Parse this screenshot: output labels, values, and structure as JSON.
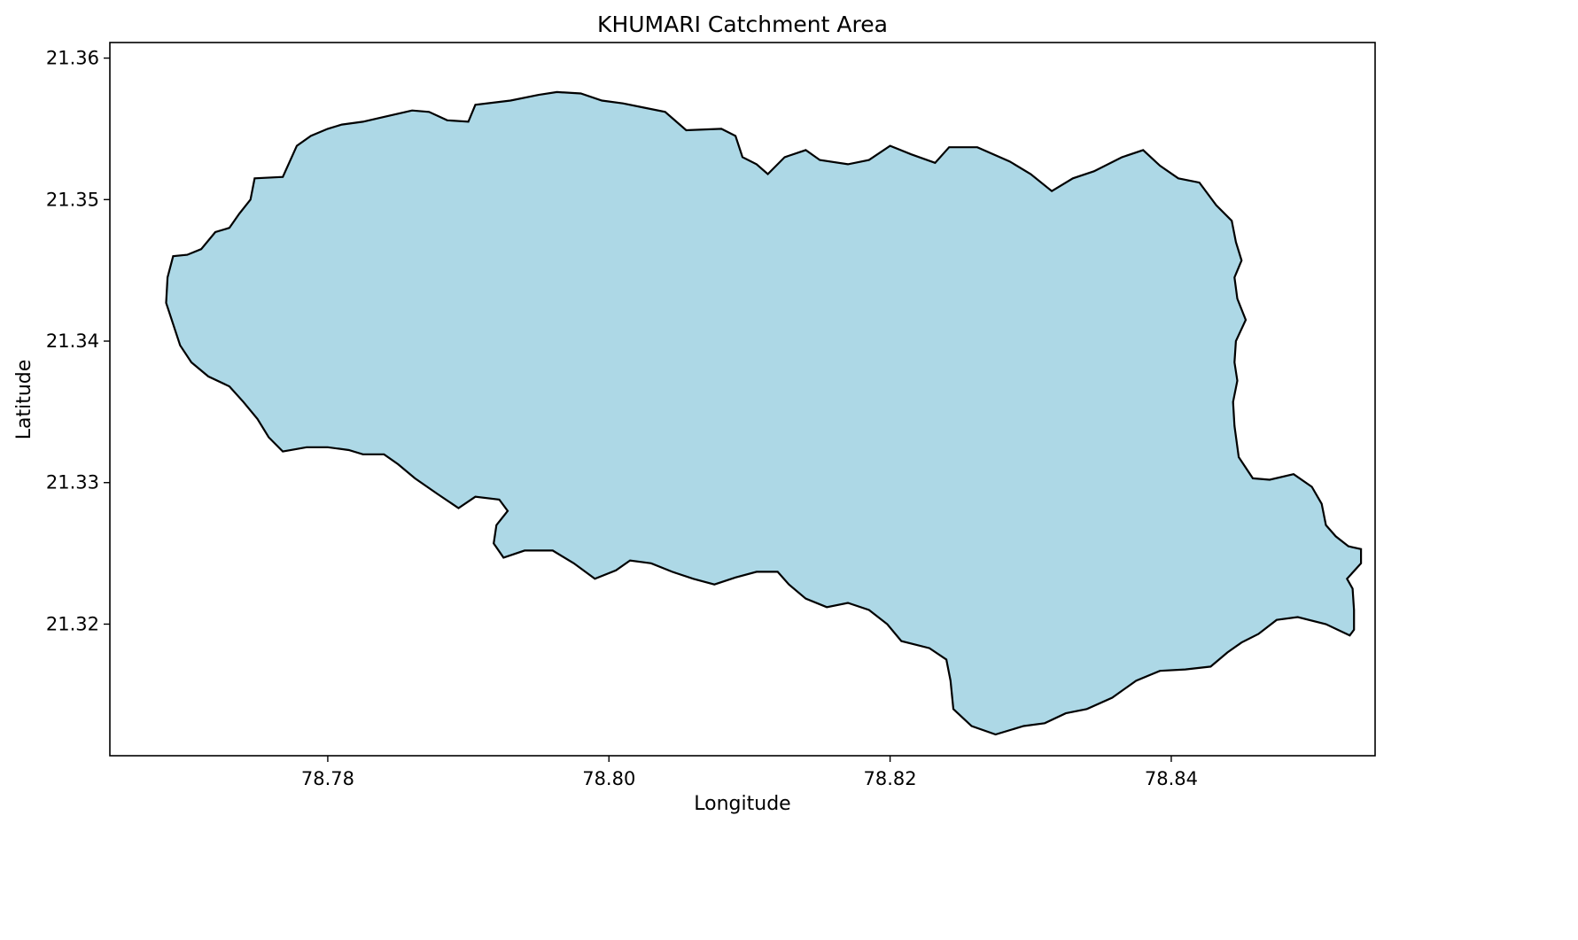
{
  "chart_data": {
    "type": "map",
    "title": "KHUMARI Catchment Area",
    "xlabel": "Longitude",
    "ylabel": "Latitude",
    "xlim": [
      78.7645,
      78.8545
    ],
    "ylim": [
      21.3107,
      21.3611
    ],
    "x_ticks": [
      {
        "value": 78.78,
        "label": "78.78"
      },
      {
        "value": 78.8,
        "label": "78.80"
      },
      {
        "value": 78.82,
        "label": "78.82"
      },
      {
        "value": 78.84,
        "label": "78.84"
      }
    ],
    "y_ticks": [
      {
        "value": 21.32,
        "label": "21.32"
      },
      {
        "value": 21.33,
        "label": "21.33"
      },
      {
        "value": 21.34,
        "label": "21.34"
      },
      {
        "value": 21.35,
        "label": "21.35"
      },
      {
        "value": 21.36,
        "label": "21.36"
      }
    ],
    "grid": false,
    "legend": false,
    "fill_color": "#add8e6",
    "edge_color": "#000000",
    "boundary_lonlat": [
      [
        78.7686,
        21.3445
      ],
      [
        78.769,
        21.346
      ],
      [
        78.77,
        21.3461
      ],
      [
        78.771,
        21.3465
      ],
      [
        78.772,
        21.3477
      ],
      [
        78.773,
        21.348
      ],
      [
        78.7737,
        21.349
      ],
      [
        78.7745,
        21.35
      ],
      [
        78.7748,
        21.3515
      ],
      [
        78.7768,
        21.3516
      ],
      [
        78.7778,
        21.3538
      ],
      [
        78.7788,
        21.3545
      ],
      [
        78.78,
        21.355
      ],
      [
        78.781,
        21.3553
      ],
      [
        78.7825,
        21.3555
      ],
      [
        78.7838,
        21.3558
      ],
      [
        78.786,
        21.3563
      ],
      [
        78.7872,
        21.3562
      ],
      [
        78.7885,
        21.3556
      ],
      [
        78.79,
        21.3555
      ],
      [
        78.7905,
        21.3567
      ],
      [
        78.793,
        21.357
      ],
      [
        78.795,
        21.3574
      ],
      [
        78.7963,
        21.3576
      ],
      [
        78.798,
        21.3575
      ],
      [
        78.7995,
        21.357
      ],
      [
        78.801,
        21.3568
      ],
      [
        78.8025,
        21.3565
      ],
      [
        78.804,
        21.3562
      ],
      [
        78.8055,
        21.3549
      ],
      [
        78.808,
        21.355
      ],
      [
        78.809,
        21.3545
      ],
      [
        78.8095,
        21.353
      ],
      [
        78.8105,
        21.3525
      ],
      [
        78.8113,
        21.3518
      ],
      [
        78.8125,
        21.353
      ],
      [
        78.814,
        21.3535
      ],
      [
        78.815,
        21.3528
      ],
      [
        78.817,
        21.3525
      ],
      [
        78.8185,
        21.3528
      ],
      [
        78.82,
        21.3538
      ],
      [
        78.8215,
        21.3532
      ],
      [
        78.8232,
        21.3526
      ],
      [
        78.8242,
        21.3537
      ],
      [
        78.8262,
        21.3537
      ],
      [
        78.8285,
        21.3527
      ],
      [
        78.83,
        21.3518
      ],
      [
        78.8315,
        21.3506
      ],
      [
        78.833,
        21.3515
      ],
      [
        78.8345,
        21.352
      ],
      [
        78.8365,
        21.353
      ],
      [
        78.838,
        21.3535
      ],
      [
        78.8392,
        21.3524
      ],
      [
        78.8405,
        21.3515
      ],
      [
        78.842,
        21.3512
      ],
      [
        78.8432,
        21.3496
      ],
      [
        78.8443,
        21.3485
      ],
      [
        78.8446,
        21.347
      ],
      [
        78.845,
        21.3457
      ],
      [
        78.8445,
        21.3445
      ],
      [
        78.8447,
        21.343
      ],
      [
        78.8453,
        21.3415
      ],
      [
        78.8446,
        21.34
      ],
      [
        78.8445,
        21.3385
      ],
      [
        78.8447,
        21.3372
      ],
      [
        78.8444,
        21.3357
      ],
      [
        78.8445,
        21.334
      ],
      [
        78.8448,
        21.3318
      ],
      [
        78.8458,
        21.3303
      ],
      [
        78.847,
        21.3302
      ],
      [
        78.8487,
        21.3306
      ],
      [
        78.85,
        21.3297
      ],
      [
        78.8507,
        21.3285
      ],
      [
        78.851,
        21.327
      ],
      [
        78.8517,
        21.3262
      ],
      [
        78.8526,
        21.3255
      ],
      [
        78.8535,
        21.3253
      ],
      [
        78.8535,
        21.3243
      ],
      [
        78.8525,
        21.3232
      ],
      [
        78.8529,
        21.3225
      ],
      [
        78.853,
        21.321
      ],
      [
        78.853,
        21.3196
      ],
      [
        78.8527,
        21.3192
      ],
      [
        78.851,
        21.32
      ],
      [
        78.849,
        21.3205
      ],
      [
        78.8475,
        21.3203
      ],
      [
        78.8462,
        21.3193
      ],
      [
        78.845,
        21.3187
      ],
      [
        78.844,
        21.318
      ],
      [
        78.8428,
        21.317
      ],
      [
        78.841,
        21.3168
      ],
      [
        78.8392,
        21.3167
      ],
      [
        78.8375,
        21.316
      ],
      [
        78.8358,
        21.3148
      ],
      [
        78.834,
        21.314
      ],
      [
        78.8325,
        21.3137
      ],
      [
        78.831,
        21.313
      ],
      [
        78.8295,
        21.3128
      ],
      [
        78.8275,
        21.3122
      ],
      [
        78.8258,
        21.3128
      ],
      [
        78.8245,
        21.314
      ],
      [
        78.8243,
        21.316
      ],
      [
        78.824,
        21.3175
      ],
      [
        78.8228,
        21.3183
      ],
      [
        78.8208,
        21.3188
      ],
      [
        78.8198,
        21.32
      ],
      [
        78.8185,
        21.321
      ],
      [
        78.817,
        21.3215
      ],
      [
        78.8155,
        21.3212
      ],
      [
        78.814,
        21.3218
      ],
      [
        78.8128,
        21.3228
      ],
      [
        78.812,
        21.3237
      ],
      [
        78.8105,
        21.3237
      ],
      [
        78.809,
        21.3233
      ],
      [
        78.8075,
        21.3228
      ],
      [
        78.806,
        21.3232
      ],
      [
        78.8045,
        21.3237
      ],
      [
        78.803,
        21.3243
      ],
      [
        78.8015,
        21.3245
      ],
      [
        78.8005,
        21.3238
      ],
      [
        78.799,
        21.3232
      ],
      [
        78.7975,
        21.3243
      ],
      [
        78.796,
        21.3252
      ],
      [
        78.794,
        21.3252
      ],
      [
        78.7925,
        21.3247
      ],
      [
        78.7918,
        21.3257
      ],
      [
        78.792,
        21.327
      ],
      [
        78.7928,
        21.328
      ],
      [
        78.7922,
        21.3288
      ],
      [
        78.7905,
        21.329
      ],
      [
        78.7893,
        21.3282
      ],
      [
        78.7878,
        21.3292
      ],
      [
        78.7862,
        21.3303
      ],
      [
        78.785,
        21.3313
      ],
      [
        78.784,
        21.332
      ],
      [
        78.7825,
        21.332
      ],
      [
        78.7815,
        21.3323
      ],
      [
        78.78,
        21.3325
      ],
      [
        78.7785,
        21.3325
      ],
      [
        78.7768,
        21.3322
      ],
      [
        78.7758,
        21.3332
      ],
      [
        78.775,
        21.3345
      ],
      [
        78.774,
        21.3357
      ],
      [
        78.773,
        21.3368
      ],
      [
        78.7715,
        21.3375
      ],
      [
        78.7703,
        21.3385
      ],
      [
        78.7695,
        21.3397
      ],
      [
        78.769,
        21.3412
      ],
      [
        78.7685,
        21.3427
      ]
    ]
  }
}
